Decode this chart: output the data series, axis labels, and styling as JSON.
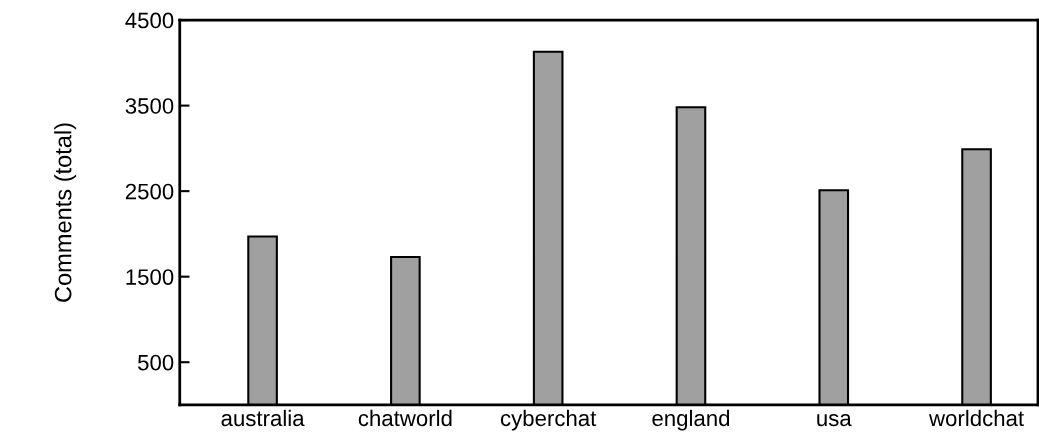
{
  "chart_data": {
    "type": "bar",
    "ylabel": "Comments (total)",
    "categories": [
      "australia",
      "chatworld",
      "cyberchat",
      "england",
      "usa",
      "worldchat"
    ],
    "values": [
      1970,
      1730,
      4130,
      3480,
      2510,
      2990
    ],
    "color": "#a0a0a0",
    "ylim": [
      0,
      4500
    ],
    "yticks": [
      500,
      1500,
      2500,
      3500,
      4500
    ],
    "grid": false
  }
}
